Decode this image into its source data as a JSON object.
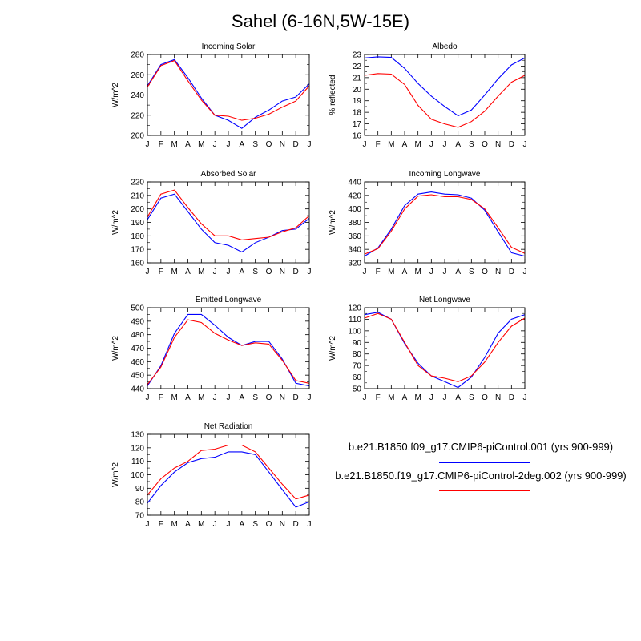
{
  "figure_title": "Sahel (6-16N,5W-15E)",
  "colors": {
    "run1": "#0000ff",
    "run2": "#ff0000"
  },
  "legend": [
    {
      "label": "b.e21.B1850.f09_g17.CMIP6-piControl.001 (yrs 900-999)",
      "color": "#0000ff"
    },
    {
      "label": "b.e21.B1850.f19_g17.CMIP6-piControl-2deg.002 (yrs 900-999)",
      "color": "#ff0000"
    }
  ],
  "chart_data": [
    {
      "type": "line",
      "title": "Incoming Solar",
      "ylabel": "W/m^2",
      "ylim": [
        200,
        280
      ],
      "yticks": [
        200,
        220,
        240,
        260,
        280
      ],
      "categories": [
        "J",
        "F",
        "M",
        "A",
        "M",
        "J",
        "J",
        "A",
        "S",
        "O",
        "N",
        "D",
        "J"
      ],
      "series": [
        {
          "color": "#0000ff",
          "values": [
            249,
            270,
            275,
            257,
            237,
            220,
            215,
            207,
            218,
            225,
            234,
            238,
            251
          ]
        },
        {
          "color": "#ff0000",
          "values": [
            248,
            269,
            274,
            254,
            235,
            220,
            219,
            215,
            217,
            221,
            228,
            234,
            249
          ]
        }
      ]
    },
    {
      "type": "line",
      "title": "Albedo",
      "ylabel": "% reflected",
      "ylim": [
        16.0,
        23.0
      ],
      "yticks": [
        16.0,
        17.0,
        18.0,
        19.0,
        20.0,
        21.0,
        22.0,
        23.0
      ],
      "categories": [
        "J",
        "F",
        "M",
        "A",
        "M",
        "J",
        "J",
        "A",
        "S",
        "O",
        "N",
        "D",
        "J"
      ],
      "series": [
        {
          "color": "#0000ff",
          "values": [
            22.7,
            22.8,
            22.75,
            21.8,
            20.5,
            19.4,
            18.5,
            17.7,
            18.2,
            19.5,
            20.9,
            22.1,
            22.7
          ]
        },
        {
          "color": "#ff0000",
          "values": [
            21.2,
            21.35,
            21.3,
            20.4,
            18.6,
            17.4,
            17.0,
            16.7,
            17.2,
            18.1,
            19.4,
            20.6,
            21.2
          ]
        }
      ]
    },
    {
      "type": "line",
      "title": "Absorbed Solar",
      "ylabel": "W/m^2",
      "ylim": [
        160,
        220
      ],
      "yticks": [
        160,
        170,
        180,
        190,
        200,
        210,
        220
      ],
      "categories": [
        "J",
        "F",
        "M",
        "A",
        "M",
        "J",
        "J",
        "A",
        "S",
        "O",
        "N",
        "D",
        "J"
      ],
      "series": [
        {
          "color": "#0000ff",
          "values": [
            192,
            208,
            211,
            198,
            185,
            175,
            173,
            168,
            175,
            179,
            184,
            185,
            193
          ]
        },
        {
          "color": "#ff0000",
          "values": [
            194,
            211,
            214,
            201,
            189,
            180,
            180,
            177,
            178,
            179,
            183,
            186,
            195
          ]
        }
      ]
    },
    {
      "type": "line",
      "title": "Incoming Longwave",
      "ylabel": "W/m^2",
      "ylim": [
        320,
        440
      ],
      "yticks": [
        320,
        340,
        360,
        380,
        400,
        420,
        440
      ],
      "categories": [
        "J",
        "F",
        "M",
        "A",
        "M",
        "J",
        "J",
        "A",
        "S",
        "O",
        "N",
        "D",
        "J"
      ],
      "series": [
        {
          "color": "#0000ff",
          "values": [
            330,
            342,
            370,
            405,
            422,
            425,
            422,
            421,
            416,
            398,
            366,
            335,
            330
          ]
        },
        {
          "color": "#ff0000",
          "values": [
            333,
            341,
            367,
            400,
            419,
            421,
            418,
            418,
            414,
            400,
            372,
            343,
            334
          ]
        }
      ]
    },
    {
      "type": "line",
      "title": "Emitted Longwave",
      "ylabel": "W/m^2",
      "ylim": [
        440,
        500
      ],
      "yticks": [
        440,
        450,
        460,
        470,
        480,
        490,
        500
      ],
      "categories": [
        "J",
        "F",
        "M",
        "A",
        "M",
        "J",
        "J",
        "A",
        "S",
        "O",
        "N",
        "D",
        "J"
      ],
      "series": [
        {
          "color": "#0000ff",
          "values": [
            442,
            457,
            481,
            495,
            495,
            487,
            478,
            472,
            475,
            475,
            462,
            444,
            442
          ]
        },
        {
          "color": "#ff0000",
          "values": [
            443,
            456,
            478,
            491,
            489,
            481,
            476,
            472,
            474,
            473,
            461,
            446,
            444
          ]
        }
      ]
    },
    {
      "type": "line",
      "title": "Net Longwave",
      "ylabel": "W/m^2",
      "ylim": [
        50,
        120
      ],
      "yticks": [
        50,
        60,
        70,
        80,
        90,
        100,
        110,
        120
      ],
      "categories": [
        "J",
        "F",
        "M",
        "A",
        "M",
        "J",
        "J",
        "A",
        "S",
        "O",
        "N",
        "D",
        "J"
      ],
      "series": [
        {
          "color": "#0000ff",
          "values": [
            114,
            116,
            110,
            89,
            72,
            61,
            56,
            51,
            60,
            77,
            98,
            110,
            114
          ]
        },
        {
          "color": "#ff0000",
          "values": [
            111,
            115,
            110,
            90,
            70,
            61,
            59,
            56,
            61,
            73,
            90,
            104,
            111
          ]
        }
      ]
    },
    {
      "type": "line",
      "title": "Net Radiation",
      "ylabel": "W/m^2",
      "ylim": [
        70,
        130
      ],
      "yticks": [
        70,
        80,
        90,
        100,
        110,
        120,
        130
      ],
      "categories": [
        "J",
        "F",
        "M",
        "A",
        "M",
        "J",
        "J",
        "A",
        "S",
        "O",
        "N",
        "D",
        "J"
      ],
      "series": [
        {
          "color": "#0000ff",
          "values": [
            79,
            92,
            102,
            109,
            112,
            113,
            117,
            117,
            115,
            102,
            89,
            76,
            80
          ]
        },
        {
          "color": "#ff0000",
          "values": [
            85,
            97,
            105,
            110,
            118,
            119,
            122,
            122,
            117,
            105,
            93,
            82,
            85
          ]
        }
      ]
    }
  ]
}
